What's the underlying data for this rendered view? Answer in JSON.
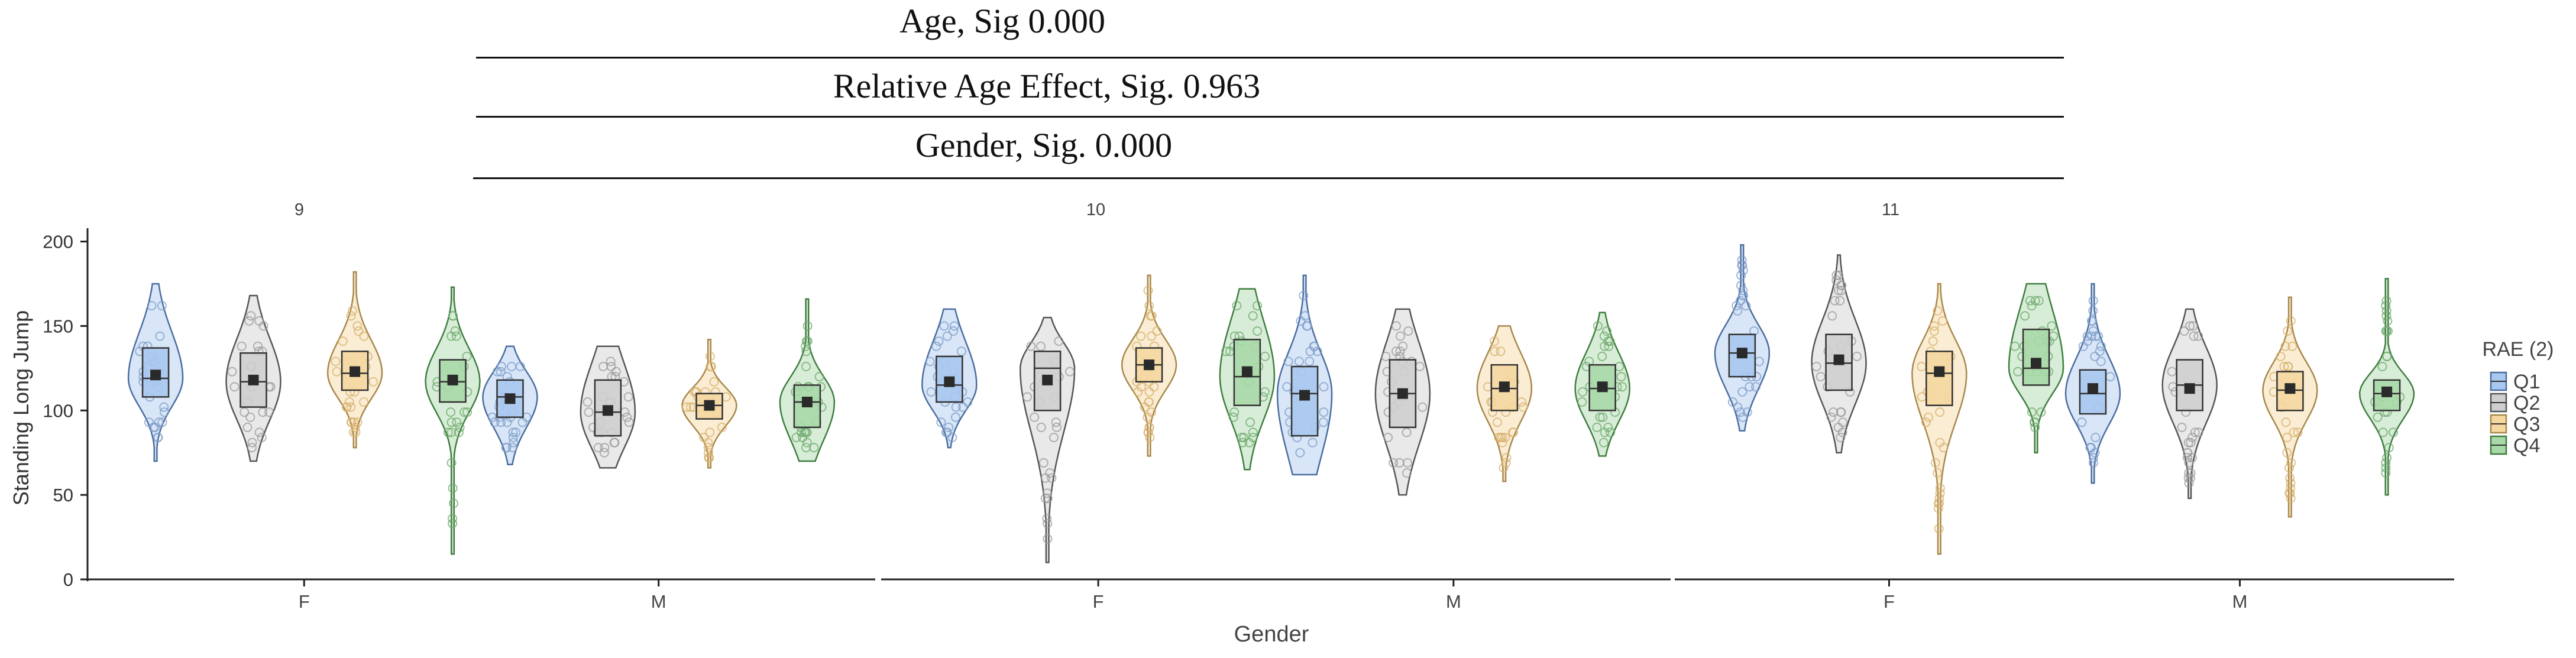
{
  "header": {
    "tests": [
      {
        "label": "Age, Sig 0.000"
      },
      {
        "label": "Relative Age Effect, Sig. 0.963"
      },
      {
        "label": "Gender, Sig. 0.000"
      }
    ]
  },
  "chart_data": {
    "type": "violin",
    "title": "",
    "xlabel": "Gender",
    "ylabel": "Standing Long Jump",
    "ylim": [
      0,
      210
    ],
    "yticks": [
      0,
      50,
      100,
      150,
      200
    ],
    "facets": [
      "9",
      "10",
      "11"
    ],
    "categories": [
      "F",
      "M"
    ],
    "legend": {
      "title": "RAE (2)",
      "position": "right",
      "entries": [
        "Q1",
        "Q2",
        "Q3",
        "Q4"
      ],
      "colors": [
        "#a9c8f0",
        "#cfcfcf",
        "#f5d7a0",
        "#a9d8a8"
      ]
    },
    "series": [
      {
        "facet": "9",
        "gender": "F",
        "group": "Q1",
        "min": 70,
        "q1": 108,
        "median": 119,
        "q3": 137,
        "max": 175,
        "mean": 121
      },
      {
        "facet": "9",
        "gender": "F",
        "group": "Q2",
        "min": 70,
        "q1": 102,
        "median": 117,
        "q3": 134,
        "max": 168,
        "mean": 118
      },
      {
        "facet": "9",
        "gender": "F",
        "group": "Q3",
        "min": 78,
        "q1": 112,
        "median": 122,
        "q3": 135,
        "max": 182,
        "mean": 123
      },
      {
        "facet": "9",
        "gender": "F",
        "group": "Q4",
        "min": 15,
        "q1": 105,
        "median": 117,
        "q3": 130,
        "max": 173,
        "mean": 118
      },
      {
        "facet": "9",
        "gender": "M",
        "group": "Q1",
        "min": 68,
        "q1": 96,
        "median": 108,
        "q3": 118,
        "max": 138,
        "mean": 107
      },
      {
        "facet": "9",
        "gender": "M",
        "group": "Q2",
        "min": 66,
        "q1": 85,
        "median": 99,
        "q3": 118,
        "max": 138,
        "mean": 100
      },
      {
        "facet": "9",
        "gender": "M",
        "group": "Q3",
        "min": 66,
        "q1": 95,
        "median": 103,
        "q3": 110,
        "max": 142,
        "mean": 103
      },
      {
        "facet": "9",
        "gender": "M",
        "group": "Q4",
        "min": 70,
        "q1": 90,
        "median": 105,
        "q3": 115,
        "max": 166,
        "mean": 105
      },
      {
        "facet": "10",
        "gender": "F",
        "group": "Q1",
        "min": 78,
        "q1": 105,
        "median": 115,
        "q3": 132,
        "max": 160,
        "mean": 117
      },
      {
        "facet": "10",
        "gender": "F",
        "group": "Q2",
        "min": 10,
        "q1": 100,
        "median": 125,
        "q3": 135,
        "max": 155,
        "mean": 118
      },
      {
        "facet": "10",
        "gender": "F",
        "group": "Q3",
        "min": 73,
        "q1": 117,
        "median": 127,
        "q3": 137,
        "max": 180,
        "mean": 127
      },
      {
        "facet": "10",
        "gender": "F",
        "group": "Q4",
        "min": 65,
        "q1": 103,
        "median": 120,
        "q3": 142,
        "max": 172,
        "mean": 123
      },
      {
        "facet": "10",
        "gender": "M",
        "group": "Q1",
        "min": 62,
        "q1": 85,
        "median": 110,
        "q3": 126,
        "max": 180,
        "mean": 109
      },
      {
        "facet": "10",
        "gender": "M",
        "group": "Q2",
        "min": 50,
        "q1": 90,
        "median": 110,
        "q3": 130,
        "max": 160,
        "mean": 110
      },
      {
        "facet": "10",
        "gender": "M",
        "group": "Q3",
        "min": 58,
        "q1": 100,
        "median": 113,
        "q3": 127,
        "max": 150,
        "mean": 114
      },
      {
        "facet": "10",
        "gender": "M",
        "group": "Q4",
        "min": 73,
        "q1": 100,
        "median": 113,
        "q3": 127,
        "max": 158,
        "mean": 114
      },
      {
        "facet": "11",
        "gender": "F",
        "group": "Q1",
        "min": 88,
        "q1": 120,
        "median": 134,
        "q3": 145,
        "max": 198,
        "mean": 134
      },
      {
        "facet": "11",
        "gender": "F",
        "group": "Q2",
        "min": 75,
        "q1": 112,
        "median": 128,
        "q3": 145,
        "max": 192,
        "mean": 130
      },
      {
        "facet": "11",
        "gender": "F",
        "group": "Q3",
        "min": 15,
        "q1": 103,
        "median": 122,
        "q3": 135,
        "max": 175,
        "mean": 123
      },
      {
        "facet": "11",
        "gender": "F",
        "group": "Q4",
        "min": 75,
        "q1": 115,
        "median": 125,
        "q3": 148,
        "max": 175,
        "mean": 128
      },
      {
        "facet": "11",
        "gender": "M",
        "group": "Q1",
        "min": 57,
        "q1": 98,
        "median": 110,
        "q3": 124,
        "max": 175,
        "mean": 113
      },
      {
        "facet": "11",
        "gender": "M",
        "group": "Q2",
        "min": 48,
        "q1": 100,
        "median": 115,
        "q3": 130,
        "max": 160,
        "mean": 113
      },
      {
        "facet": "11",
        "gender": "M",
        "group": "Q3",
        "min": 37,
        "q1": 100,
        "median": 112,
        "q3": 123,
        "max": 167,
        "mean": 113
      },
      {
        "facet": "11",
        "gender": "M",
        "group": "Q4",
        "min": 50,
        "q1": 100,
        "median": 110,
        "q3": 118,
        "max": 178,
        "mean": 111
      }
    ]
  }
}
